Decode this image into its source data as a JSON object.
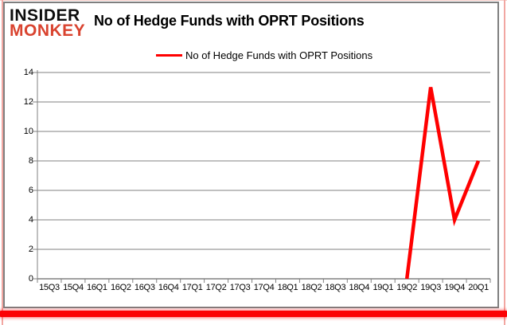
{
  "brand": {
    "line1": "INSIDER",
    "line2": "MONKEY"
  },
  "header": {
    "title": "No of Hedge Funds with OPRT Positions"
  },
  "legend": {
    "label": "No of Hedge Funds with OPRT Positions",
    "line_color": "#ff0000"
  },
  "colors": {
    "series_red": "#ff0000",
    "grid_gray": "#808080",
    "chart_border_gray": "#7f7f7f",
    "brand_red": "#d9432f",
    "frame_red": "#fb0204"
  },
  "chart_data": {
    "type": "line",
    "title": "No of Hedge Funds with OPRT Positions",
    "categories": [
      "15Q3",
      "15Q4",
      "16Q1",
      "16Q2",
      "16Q3",
      "16Q4",
      "17Q1",
      "17Q2",
      "17Q3",
      "17Q4",
      "18Q1",
      "18Q2",
      "18Q3",
      "18Q4",
      "19Q1",
      "19Q2",
      "19Q3",
      "19Q4",
      "20Q1"
    ],
    "series": [
      {
        "name": "No of Hedge Funds with OPRT Positions",
        "color": "#ff0000",
        "values": [
          null,
          null,
          null,
          null,
          null,
          null,
          null,
          null,
          null,
          null,
          null,
          null,
          null,
          null,
          null,
          0,
          13,
          4,
          8
        ]
      }
    ],
    "ylim": [
      0,
      14
    ],
    "yticks": [
      0,
      2,
      4,
      6,
      8,
      10,
      12,
      14
    ],
    "grid": true,
    "legend_position": "top-center",
    "xlabel": "",
    "ylabel": ""
  }
}
